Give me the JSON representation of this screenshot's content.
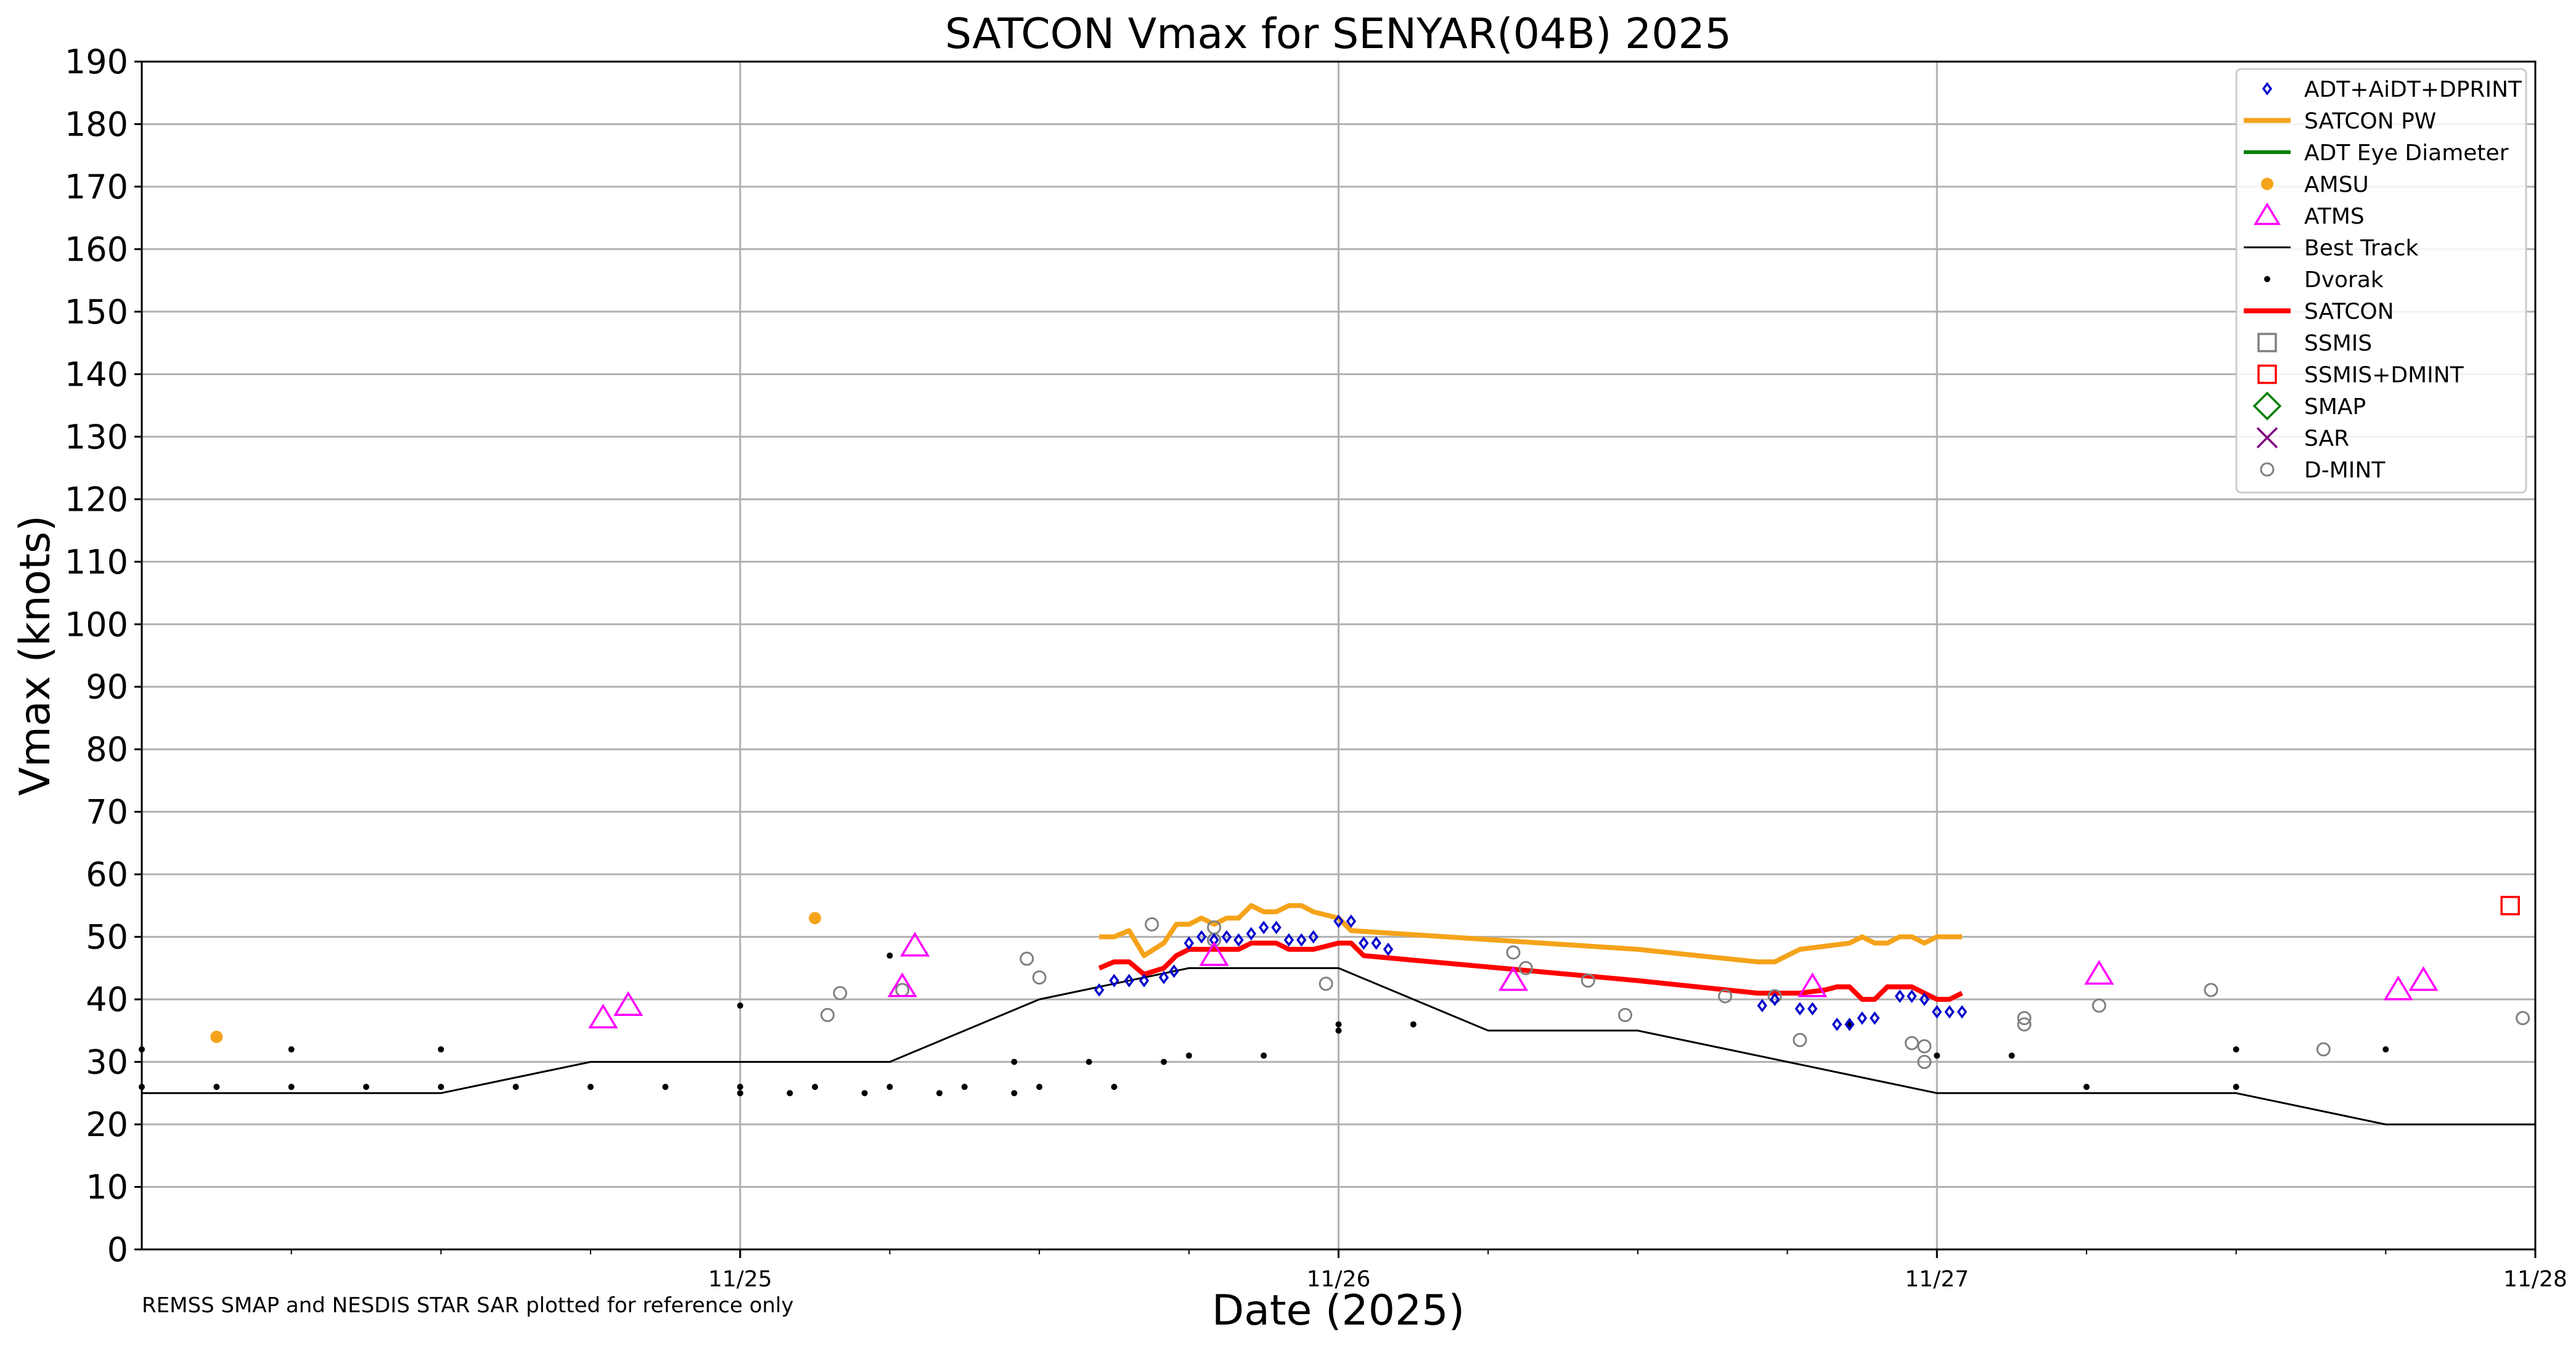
{
  "chart_data": {
    "type": "scatter",
    "title": "SATCON Vmax for SENYAR(04B) 2025",
    "xlabel": "Date (2025)",
    "ylabel": "Vmax (knots)",
    "note": "REMSS SMAP and NESDIS STAR SAR plotted for reference only",
    "x_unit": "days after 11/24 00 UTC",
    "xlim": [
      0,
      4
    ],
    "ylim": [
      0,
      190
    ],
    "yticks": [
      0,
      10,
      20,
      30,
      40,
      50,
      60,
      70,
      80,
      90,
      100,
      110,
      120,
      130,
      140,
      150,
      160,
      170,
      180,
      190
    ],
    "xticks": [
      {
        "value": 1,
        "label": "11/25"
      },
      {
        "value": 2,
        "label": "11/26"
      },
      {
        "value": 3,
        "label": "11/27"
      },
      {
        "value": 4,
        "label": "11/28"
      }
    ],
    "grid": true,
    "legend_position": "top-right",
    "series": [
      {
        "name": "ADT+AiDT+DPRINT",
        "kind": "marker",
        "marker": "diamond",
        "color": "#0000cc",
        "points": [
          [
            1.6,
            41.5
          ],
          [
            1.625,
            43
          ],
          [
            1.65,
            43
          ],
          [
            1.675,
            43
          ],
          [
            1.708,
            43.5
          ],
          [
            1.725,
            44.5
          ],
          [
            1.75,
            49
          ],
          [
            1.771,
            50
          ],
          [
            1.792,
            49.5
          ],
          [
            1.813,
            50
          ],
          [
            1.833,
            49.5
          ],
          [
            1.854,
            50.5
          ],
          [
            1.875,
            51.5
          ],
          [
            1.896,
            51.5
          ],
          [
            1.917,
            49.5
          ],
          [
            1.938,
            49.5
          ],
          [
            1.958,
            50
          ],
          [
            2.0,
            52.5
          ],
          [
            2.021,
            52.5
          ],
          [
            2.042,
            49
          ],
          [
            2.063,
            49
          ],
          [
            2.083,
            48
          ],
          [
            2.708,
            39
          ],
          [
            2.729,
            40
          ],
          [
            2.771,
            38.5
          ],
          [
            2.792,
            38.5
          ],
          [
            2.833,
            36
          ],
          [
            2.854,
            36
          ],
          [
            2.875,
            37
          ],
          [
            2.896,
            37
          ],
          [
            2.938,
            40.5
          ],
          [
            2.958,
            40.5
          ],
          [
            2.979,
            40
          ],
          [
            3.0,
            38
          ],
          [
            3.021,
            38
          ],
          [
            3.042,
            38
          ]
        ]
      },
      {
        "name": "SATCON PW",
        "kind": "line",
        "color": "#f5a31a",
        "width": 8,
        "points": [
          [
            1.6,
            50
          ],
          [
            1.625,
            50
          ],
          [
            1.65,
            51
          ],
          [
            1.675,
            47
          ],
          [
            1.708,
            49
          ],
          [
            1.729,
            52
          ],
          [
            1.75,
            52
          ],
          [
            1.771,
            53
          ],
          [
            1.792,
            52
          ],
          [
            1.813,
            53
          ],
          [
            1.833,
            53
          ],
          [
            1.854,
            55
          ],
          [
            1.875,
            54
          ],
          [
            1.896,
            54
          ],
          [
            1.917,
            55
          ],
          [
            1.938,
            55
          ],
          [
            1.958,
            54
          ],
          [
            1.979,
            53.5
          ],
          [
            2.0,
            53
          ],
          [
            2.021,
            51
          ],
          [
            2.5,
            48
          ],
          [
            2.7,
            46
          ],
          [
            2.729,
            46
          ],
          [
            2.771,
            48
          ],
          [
            2.813,
            48.5
          ],
          [
            2.854,
            49
          ],
          [
            2.875,
            50
          ],
          [
            2.896,
            49
          ],
          [
            2.917,
            49
          ],
          [
            2.938,
            50
          ],
          [
            2.958,
            50
          ],
          [
            2.979,
            49
          ],
          [
            3.0,
            50
          ],
          [
            3.042,
            50
          ]
        ]
      },
      {
        "name": "ADT Eye Diameter",
        "kind": "line",
        "color": "#008000",
        "width": 6,
        "points": []
      },
      {
        "name": "AMSU",
        "kind": "marker",
        "marker": "dot",
        "color": "#f5a31a",
        "points": [
          [
            0.125,
            34
          ],
          [
            1.125,
            53
          ]
        ]
      },
      {
        "name": "ATMS",
        "kind": "marker",
        "marker": "triangle",
        "color": "#ff00ff",
        "points": [
          [
            0.771,
            37
          ],
          [
            0.813,
            39
          ],
          [
            1.271,
            42
          ],
          [
            1.292,
            48.5
          ],
          [
            1.792,
            47
          ],
          [
            2.292,
            43
          ],
          [
            2.792,
            42
          ],
          [
            3.271,
            44
          ],
          [
            3.771,
            41.5
          ],
          [
            3.813,
            43
          ]
        ]
      },
      {
        "name": "Best Track",
        "kind": "line",
        "color": "#000000",
        "width": 3,
        "points": [
          [
            0,
            25
          ],
          [
            0.5,
            25
          ],
          [
            0.75,
            30
          ],
          [
            1.25,
            30
          ],
          [
            1.5,
            40
          ],
          [
            1.75,
            45
          ],
          [
            2.0,
            45
          ],
          [
            2.25,
            35
          ],
          [
            2.5,
            35
          ],
          [
            3.0,
            25
          ],
          [
            3.5,
            25
          ],
          [
            3.75,
            20
          ],
          [
            4.0,
            20
          ]
        ]
      },
      {
        "name": "Dvorak",
        "kind": "marker",
        "marker": "smalldot",
        "color": "#000000",
        "points": [
          [
            0,
            32
          ],
          [
            0,
            26
          ],
          [
            0.125,
            26
          ],
          [
            0.25,
            32
          ],
          [
            0.25,
            26
          ],
          [
            0.375,
            26
          ],
          [
            0.5,
            32
          ],
          [
            0.5,
            26
          ],
          [
            0.625,
            26
          ],
          [
            0.75,
            26
          ],
          [
            0.875,
            26
          ],
          [
            1.0,
            39
          ],
          [
            1.0,
            26
          ],
          [
            1.0,
            25
          ],
          [
            1.083,
            25
          ],
          [
            1.125,
            26
          ],
          [
            1.208,
            25
          ],
          [
            1.25,
            47
          ],
          [
            1.25,
            26
          ],
          [
            1.333,
            25
          ],
          [
            1.375,
            26
          ],
          [
            1.458,
            30
          ],
          [
            1.458,
            25
          ],
          [
            1.5,
            26
          ],
          [
            1.583,
            30
          ],
          [
            1.625,
            26
          ],
          [
            1.708,
            30
          ],
          [
            1.75,
            31
          ],
          [
            1.875,
            31
          ],
          [
            2.0,
            36
          ],
          [
            2.0,
            35
          ],
          [
            2.125,
            36
          ],
          [
            2.854,
            36
          ],
          [
            3.0,
            31
          ],
          [
            3.125,
            31
          ],
          [
            3.25,
            26
          ],
          [
            3.5,
            32
          ],
          [
            3.5,
            26
          ],
          [
            3.75,
            32
          ]
        ]
      },
      {
        "name": "SATCON",
        "kind": "line",
        "color": "#ff0000",
        "width": 8,
        "points": [
          [
            1.6,
            45
          ],
          [
            1.625,
            46
          ],
          [
            1.65,
            46
          ],
          [
            1.675,
            44
          ],
          [
            1.708,
            45
          ],
          [
            1.729,
            47
          ],
          [
            1.75,
            48
          ],
          [
            1.771,
            48
          ],
          [
            1.792,
            48
          ],
          [
            1.833,
            48
          ],
          [
            1.854,
            49
          ],
          [
            1.875,
            49
          ],
          [
            1.896,
            49
          ],
          [
            1.917,
            48
          ],
          [
            1.938,
            48
          ],
          [
            1.958,
            48
          ],
          [
            1.979,
            48.5
          ],
          [
            2.0,
            49
          ],
          [
            2.021,
            49
          ],
          [
            2.042,
            47
          ],
          [
            2.5,
            43
          ],
          [
            2.7,
            41
          ],
          [
            2.729,
            41
          ],
          [
            2.771,
            41
          ],
          [
            2.813,
            41.5
          ],
          [
            2.833,
            42
          ],
          [
            2.854,
            42
          ],
          [
            2.875,
            40
          ],
          [
            2.896,
            40
          ],
          [
            2.917,
            42
          ],
          [
            2.938,
            42
          ],
          [
            2.958,
            42
          ],
          [
            2.979,
            41
          ],
          [
            3.0,
            40
          ],
          [
            3.021,
            40
          ],
          [
            3.042,
            41
          ]
        ]
      },
      {
        "name": "SSMIS",
        "kind": "marker",
        "marker": "square",
        "color": "#808080",
        "points": []
      },
      {
        "name": "SSMIS+DMINT",
        "kind": "marker",
        "marker": "square",
        "color": "#ff0000",
        "points": [
          [
            3.958,
            55
          ]
        ]
      },
      {
        "name": "SMAP",
        "kind": "marker",
        "marker": "bigdiamond",
        "color": "#008000",
        "points": []
      },
      {
        "name": "SAR",
        "kind": "marker",
        "marker": "x",
        "color": "#800080",
        "points": []
      },
      {
        "name": "D-MINT",
        "kind": "marker",
        "marker": "circle",
        "color": "#808080",
        "points": [
          [
            1.146,
            37.5
          ],
          [
            1.167,
            41
          ],
          [
            1.271,
            41.5
          ],
          [
            1.479,
            46.5
          ],
          [
            1.5,
            43.5
          ],
          [
            1.688,
            52
          ],
          [
            1.792,
            51.5
          ],
          [
            1.792,
            49.5
          ],
          [
            1.979,
            42.5
          ],
          [
            2.292,
            47.5
          ],
          [
            2.313,
            45
          ],
          [
            2.417,
            43
          ],
          [
            2.479,
            37.5
          ],
          [
            2.646,
            40.5
          ],
          [
            2.729,
            40.5
          ],
          [
            2.771,
            33.5
          ],
          [
            2.958,
            33
          ],
          [
            2.979,
            32.5
          ],
          [
            2.979,
            30
          ],
          [
            3.146,
            36
          ],
          [
            3.146,
            37
          ],
          [
            3.271,
            39
          ],
          [
            3.458,
            41.5
          ],
          [
            3.646,
            32
          ],
          [
            3.979,
            37
          ]
        ]
      }
    ]
  }
}
